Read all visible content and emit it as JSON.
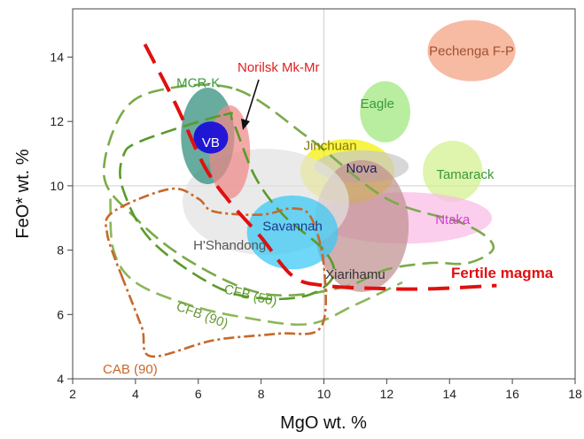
{
  "chart_data": {
    "type": "scatter",
    "title": "",
    "xlabel": "MgO wt. %",
    "ylabel": "FeO* wt. %",
    "xlim": [
      2,
      18
    ],
    "ylim": [
      4,
      15.5
    ],
    "x_ticks": [
      "2",
      "4",
      "6",
      "8",
      "10",
      "12",
      "14",
      "16",
      "18"
    ],
    "y_ticks": [
      "4",
      "6",
      "8",
      "10",
      "12",
      "14"
    ],
    "reference_lines": {
      "x": 10,
      "y": 10
    },
    "fields": [
      {
        "name": "Pechenga F-P",
        "cx": 14.7,
        "cy": 14.2,
        "rx": 1.4,
        "ry": 0.95,
        "color": "#f4a080",
        "label_color": "#a0522d"
      },
      {
        "name": "Eagle",
        "cx": 11.95,
        "cy": 12.3,
        "rx": 0.8,
        "ry": 0.95,
        "color": "#9ee67a",
        "label_color": "#3a9a3a"
      },
      {
        "name": "Tamarack",
        "cx": 14.1,
        "cy": 10.45,
        "rx": 0.95,
        "ry": 0.95,
        "color": "#d2f08c",
        "label_color": "#3a9a3a"
      },
      {
        "name": "Ntaka",
        "cx": 12.55,
        "cy": 9.0,
        "rx": 2.8,
        "ry": 0.8,
        "color": "#fabbe6",
        "label_color": "#d040d0"
      },
      {
        "name": "Jinchuan",
        "cx": 10.75,
        "cy": 10.45,
        "rx": 1.5,
        "ry": 1.0,
        "color": "#f4f000",
        "label_color": "#8a7a00"
      },
      {
        "name": "Nova",
        "cx": 11.2,
        "cy": 10.6,
        "rx": 1.5,
        "ry": 0.5,
        "color": "#c8c8c8",
        "label_color": "#202060"
      },
      {
        "name": "Xiarihamu",
        "cx": 11.2,
        "cy": 8.75,
        "rx": 1.5,
        "ry": 2.05,
        "color": "#c09090",
        "label_color": "#333333"
      },
      {
        "name": "H'Shandong",
        "cx": 8.15,
        "cy": 9.5,
        "rx": 2.65,
        "ry": 1.65,
        "color": "#e2e2e2",
        "label_color": "#555555"
      },
      {
        "name": "Savannah",
        "cx": 9.0,
        "cy": 8.55,
        "rx": 1.45,
        "ry": 1.15,
        "color": "#38c8f4",
        "label_color": "#1a3a8a"
      },
      {
        "name": "MCR-K",
        "cx": 6.3,
        "cy": 11.55,
        "rx": 0.85,
        "ry": 1.5,
        "color": "#2e8a7a",
        "label_color": "#3a9a3a"
      },
      {
        "name": "Norilsk Mk-Mr",
        "cx": 7.0,
        "cy": 11.05,
        "rx": 0.65,
        "ry": 1.45,
        "color": "#f08888",
        "label_color": "#e02020"
      },
      {
        "name": "VB",
        "cx": 6.4,
        "cy": 11.5,
        "rx": 0.55,
        "ry": 0.5,
        "color": "#1a10d8",
        "label_color": "#ffffff"
      }
    ],
    "curves": [
      {
        "name": "MCR-K",
        "style": "dashed",
        "color": "#7aaa4a",
        "points": [
          [
            7.2,
            13.0
          ],
          [
            9.5,
            11.5
          ],
          [
            12.0,
            9.6
          ],
          [
            14.5,
            8.8
          ],
          [
            15.4,
            8.1
          ],
          [
            14.6,
            7.6
          ],
          [
            13.4,
            7.6
          ],
          [
            12.0,
            7.4
          ],
          [
            10.8,
            6.9
          ],
          [
            9.0,
            6.6
          ],
          [
            7.5,
            6.8
          ],
          [
            5.5,
            7.8
          ],
          [
            4.0,
            9.0
          ],
          [
            3.0,
            10.3
          ],
          [
            3.6,
            12.3
          ],
          [
            4.9,
            13.0
          ]
        ]
      },
      {
        "name": "CFB (50)",
        "style": "dashed",
        "color": "#5a9a2a",
        "points": [
          [
            6.8,
            12.2
          ],
          [
            7.1,
            12.0
          ],
          [
            7.8,
            10.3
          ],
          [
            8.7,
            9.1
          ],
          [
            10.0,
            8.0
          ],
          [
            10.3,
            7.2
          ],
          [
            9.5,
            6.6
          ],
          [
            8.0,
            6.5
          ],
          [
            6.5,
            6.9
          ],
          [
            4.5,
            8.3
          ],
          [
            3.6,
            9.9
          ],
          [
            3.6,
            10.9
          ],
          [
            4.2,
            11.4
          ]
        ]
      },
      {
        "name": "CFB (90)",
        "style": "dashed",
        "color": "#8ab85a",
        "points": [
          [
            3.2,
            9.6
          ],
          [
            3.3,
            8.0
          ],
          [
            4.0,
            7.0
          ],
          [
            5.7,
            6.3
          ],
          [
            7.5,
            5.9
          ],
          [
            9.5,
            5.7
          ],
          [
            11.0,
            6.3
          ],
          [
            12.5,
            7.0
          ]
        ]
      },
      {
        "name": "CAB (90)",
        "style": "dashdot",
        "color": "#c8682a",
        "points": [
          [
            3.6,
            7.1
          ],
          [
            3.1,
            8.5
          ],
          [
            3.3,
            9.2
          ],
          [
            5.1,
            9.9
          ],
          [
            6.0,
            9.6
          ],
          [
            6.5,
            9.2
          ],
          [
            8.0,
            9.1
          ],
          [
            9.0,
            9.3
          ],
          [
            9.6,
            9.0
          ],
          [
            10.0,
            7.5
          ],
          [
            9.9,
            5.6
          ],
          [
            8.5,
            5.4
          ],
          [
            6.5,
            5.2
          ],
          [
            4.5,
            4.7
          ],
          [
            4.2,
            5.6
          ],
          [
            3.6,
            7.1
          ]
        ]
      }
    ],
    "fertile_magma": {
      "name": "Fertile magma",
      "color": "#e01010",
      "points": [
        [
          4.3,
          14.4
        ],
        [
          5.3,
          12.5
        ],
        [
          6.2,
          10.6
        ],
        [
          7.0,
          9.5
        ],
        [
          8.0,
          8.4
        ],
        [
          9.0,
          7.2
        ],
        [
          10.0,
          6.9
        ],
        [
          12.0,
          6.8
        ],
        [
          13.5,
          6.8
        ],
        [
          15.5,
          6.9
        ]
      ]
    },
    "labels": {
      "fertile_magma": "Fertile magma",
      "norilsk": "Norilsk Mk-Mr",
      "cfb50": "CFB (50)",
      "cfb90": "CFB (90)",
      "cab90": "CAB (90)"
    }
  }
}
